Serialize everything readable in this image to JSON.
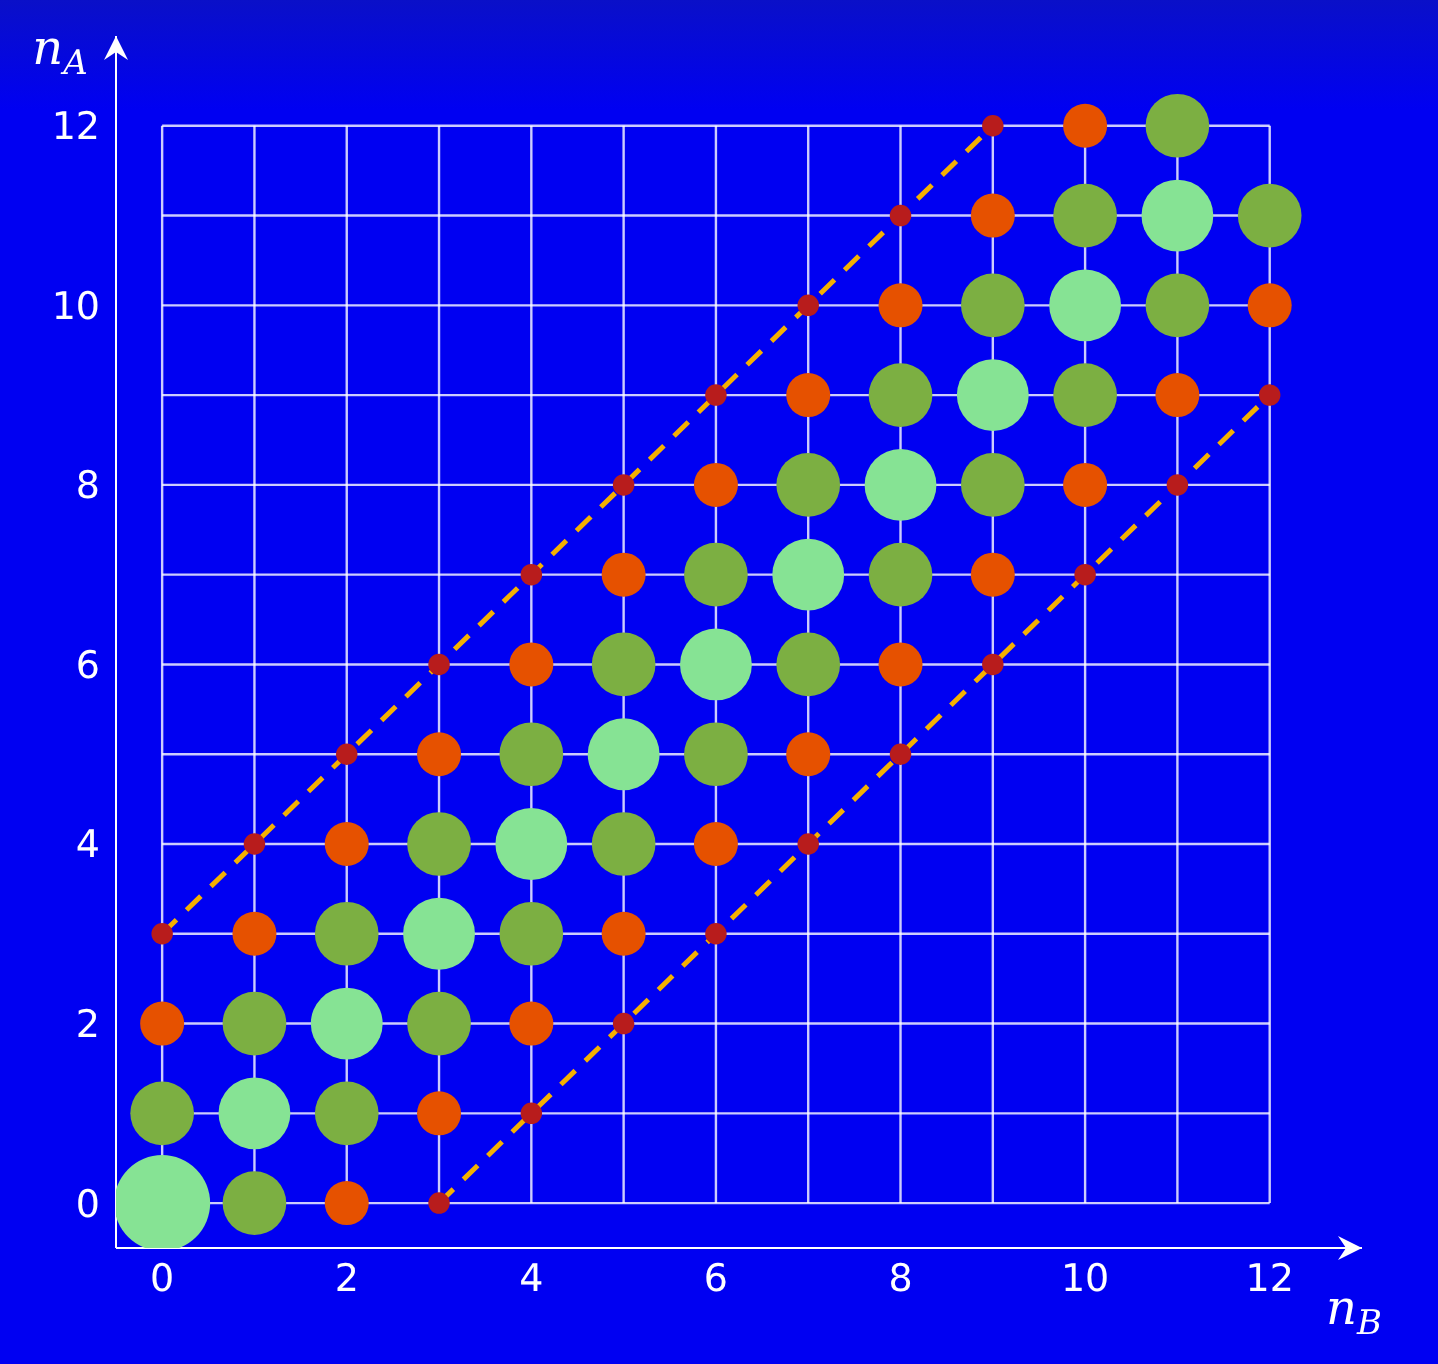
{
  "chart_data": {
    "type": "bubble",
    "xlabel": "n$_{B}$",
    "ylabel": "n$_{A}$",
    "xlim": [
      -0.5,
      13
    ],
    "ylim": [
      -0.5,
      13
    ],
    "xticks": [
      0,
      {
        "value": 1,
        "label": null
      },
      2,
      {
        "value": 3,
        "label": null
      },
      4,
      {
        "value": 5,
        "label": null
      },
      6,
      {
        "value": 7,
        "label": null
      },
      8,
      {
        "value": 9,
        "label": null
      },
      10,
      {
        "value": 11,
        "label": null
      },
      12
    ],
    "yticks": [
      0,
      {
        "value": 1,
        "label": null
      },
      2,
      {
        "value": 3,
        "label": null
      },
      4,
      {
        "value": 5,
        "label": null
      },
      6,
      {
        "value": 7,
        "label": null
      },
      8,
      {
        "value": 9,
        "label": null
      },
      10,
      {
        "value": 11,
        "label": null
      },
      12
    ],
    "grid": true,
    "series": [
      {
        "type": "line",
        "color": "#f5b000",
        "line_style": "dashed",
        "marker": "none",
        "x": [
          0,
          9
        ],
        "values": [
          3,
          12
        ]
      },
      {
        "type": "line",
        "color": "#f5b000",
        "line_style": "dashed",
        "marker": "none",
        "x": [
          3,
          12
        ],
        "values": [
          0,
          9
        ]
      },
      {
        "type": "bubble",
        "color": "#86e394",
        "x": [
          0,
          1,
          2,
          3,
          4,
          5,
          6,
          7,
          8,
          9,
          10,
          11
        ],
        "values": [
          0,
          1,
          2,
          3,
          4,
          5,
          6,
          7,
          8,
          9,
          10,
          11
        ],
        "sizes": [
          1,
          0.56,
          0.56,
          0.56,
          0.56,
          0.56,
          0.56,
          0.56,
          0.56,
          0.56,
          0.56,
          0.56
        ]
      },
      {
        "type": "bubble",
        "color": "#7caf42",
        "x": [
          0,
          1,
          2,
          3,
          4,
          5,
          6,
          7,
          8,
          9,
          10,
          11,
          1,
          2,
          3,
          4,
          5,
          6,
          7,
          8,
          9,
          10,
          11,
          12
        ],
        "values": [
          1,
          2,
          3,
          4,
          5,
          6,
          7,
          8,
          9,
          10,
          11,
          12,
          0,
          1,
          2,
          3,
          4,
          5,
          6,
          7,
          8,
          9,
          10,
          11
        ],
        "sizes": [
          0.44,
          0.44,
          0.44,
          0.44,
          0.44,
          0.44,
          0.44,
          0.44,
          0.44,
          0.44,
          0.44,
          0.44,
          0.44,
          0.44,
          0.44,
          0.44,
          0.44,
          0.44,
          0.44,
          0.44,
          0.44,
          0.44,
          0.44,
          0.44
        ]
      },
      {
        "type": "bubble",
        "color": "#e65100",
        "x": [
          0,
          1,
          2,
          3,
          4,
          5,
          6,
          7,
          8,
          9,
          10,
          2,
          3,
          4,
          5,
          6,
          7,
          8,
          9,
          10,
          11,
          12
        ],
        "values": [
          2,
          3,
          4,
          5,
          6,
          7,
          8,
          9,
          10,
          11,
          12,
          0,
          1,
          2,
          3,
          4,
          5,
          6,
          7,
          8,
          9,
          10
        ],
        "sizes": [
          0.21,
          0.21,
          0.21,
          0.21,
          0.21,
          0.21,
          0.21,
          0.21,
          0.21,
          0.21,
          0.21,
          0.21,
          0.21,
          0.21,
          0.21,
          0.21,
          0.21,
          0.21,
          0.21,
          0.21,
          0.21,
          0.21
        ]
      },
      {
        "type": "bubble",
        "color": "#b81c1c",
        "x": [
          0,
          1,
          2,
          3,
          4,
          5,
          6,
          7,
          8,
          9,
          3,
          4,
          5,
          6,
          7,
          8,
          9,
          10,
          11,
          12
        ],
        "values": [
          3,
          4,
          5,
          6,
          7,
          8,
          9,
          10,
          11,
          12,
          0,
          1,
          2,
          3,
          4,
          5,
          6,
          7,
          8,
          9
        ],
        "sizes": [
          0.05,
          0.05,
          0.05,
          0.05,
          0.05,
          0.05,
          0.05,
          0.05,
          0.05,
          0.05,
          0.05,
          0.05,
          0.05,
          0.05,
          0.05,
          0.05,
          0.05,
          0.05,
          0.05,
          0.05
        ]
      }
    ]
  }
}
